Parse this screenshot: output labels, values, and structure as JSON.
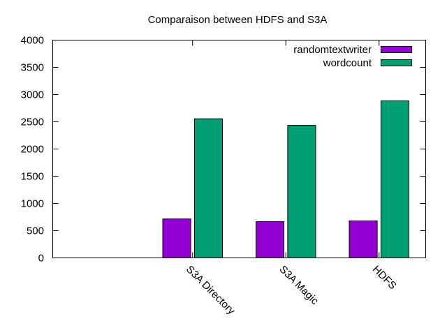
{
  "chart_data": {
    "type": "bar",
    "title": "Comparaison between HDFS and S3A",
    "xlabel": "",
    "ylabel": "",
    "categories": [
      "S3A Directory",
      "S3A Magic",
      "HDFS"
    ],
    "series": [
      {
        "name": "randomtextwriter",
        "color": "#9400d3",
        "values": [
          715,
          665,
          680
        ]
      },
      {
        "name": "wordcount",
        "color": "#009e73",
        "values": [
          2555,
          2435,
          2885
        ]
      }
    ],
    "ylim": [
      0,
      4000
    ],
    "yticks": [
      "0",
      "500",
      "1000",
      "1500",
      "2000",
      "2500",
      "3000",
      "3500",
      "4000"
    ],
    "grid": false,
    "legend_position": "top-right"
  }
}
